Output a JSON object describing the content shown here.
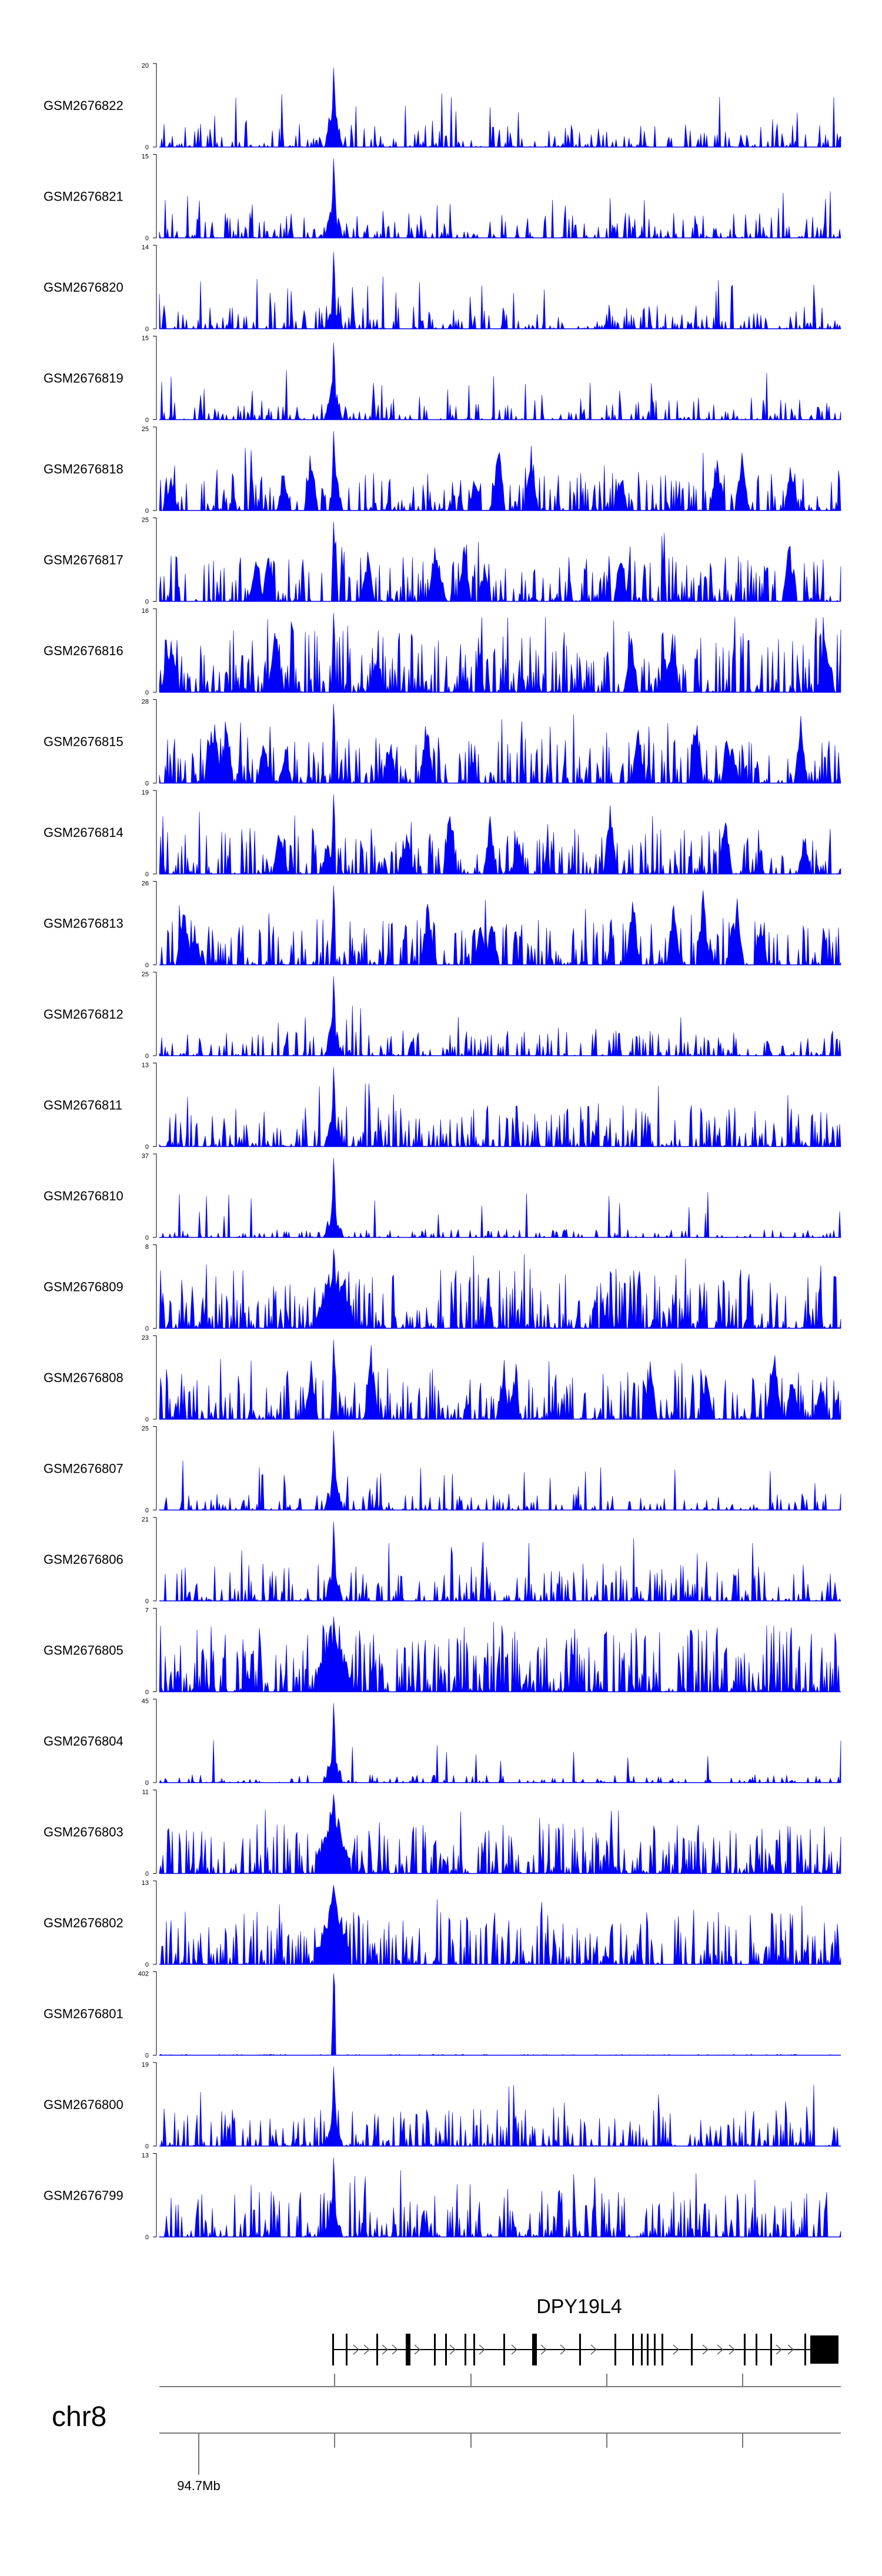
{
  "chart_data": {
    "type": "area",
    "fill_color": "#0000ff",
    "axis_color": "#000000",
    "x_range": [
      "region start",
      "region end"
    ],
    "tracks": [
      {
        "name": "GSM2676822",
        "ymax": "20",
        "ymin": "0",
        "profile": "peak",
        "peak_height": 0.95,
        "noise": 0.28,
        "seed": 11
      },
      {
        "name": "GSM2676821",
        "ymax": "15",
        "ymin": "0",
        "profile": "peak",
        "peak_height": 0.95,
        "noise": 0.3,
        "seed": 12
      },
      {
        "name": "GSM2676820",
        "ymax": "14",
        "ymin": "0",
        "profile": "peak",
        "peak_height": 0.92,
        "noise": 0.28,
        "seed": 13
      },
      {
        "name": "GSM2676819",
        "ymax": "15",
        "ymin": "0",
        "profile": "peak",
        "peak_height": 0.92,
        "noise": 0.25,
        "seed": 14
      },
      {
        "name": "GSM2676818",
        "ymax": "25",
        "ymin": "0",
        "profile": "broad",
        "peak_height": 0.95,
        "noise": 0.45,
        "seed": 15
      },
      {
        "name": "GSM2676817",
        "ymax": "25",
        "ymin": "0",
        "profile": "broad",
        "peak_height": 0.95,
        "noise": 0.55,
        "seed": 16
      },
      {
        "name": "GSM2676816",
        "ymax": "16",
        "ymin": "0",
        "profile": "broad",
        "peak_height": 0.95,
        "noise": 0.75,
        "seed": 17
      },
      {
        "name": "GSM2676815",
        "ymax": "28",
        "ymin": "0",
        "profile": "broad",
        "peak_height": 0.95,
        "noise": 0.55,
        "seed": 18
      },
      {
        "name": "GSM2676814",
        "ymax": "19",
        "ymin": "0",
        "profile": "broad",
        "peak_height": 0.95,
        "noise": 0.55,
        "seed": 19
      },
      {
        "name": "GSM2676813",
        "ymax": "26",
        "ymin": "0",
        "profile": "broad",
        "peak_height": 0.95,
        "noise": 0.55,
        "seed": 20
      },
      {
        "name": "GSM2676812",
        "ymax": "25",
        "ymin": "0",
        "profile": "peak",
        "peak_height": 0.95,
        "noise": 0.3,
        "seed": 21
      },
      {
        "name": "GSM2676811",
        "ymax": "13",
        "ymin": "0",
        "profile": "peak",
        "peak_height": 0.95,
        "noise": 0.5,
        "seed": 22
      },
      {
        "name": "GSM2676810",
        "ymax": "37",
        "ymin": "0",
        "profile": "peak",
        "peak_height": 0.95,
        "noise": 0.1,
        "seed": 23
      },
      {
        "name": "GSM2676809",
        "ymax": "8",
        "ymin": "0",
        "profile": "dense",
        "peak_height": 0.95,
        "noise": 0.7,
        "seed": 24
      },
      {
        "name": "GSM2676808",
        "ymax": "23",
        "ymin": "0",
        "profile": "broad",
        "peak_height": 0.95,
        "noise": 0.6,
        "seed": 25
      },
      {
        "name": "GSM2676807",
        "ymax": "25",
        "ymin": "0",
        "profile": "peak",
        "peak_height": 0.95,
        "noise": 0.2,
        "seed": 26
      },
      {
        "name": "GSM2676806",
        "ymax": "21",
        "ymin": "0",
        "profile": "peak",
        "peak_height": 0.95,
        "noise": 0.45,
        "seed": 27
      },
      {
        "name": "GSM2676805",
        "ymax": "7",
        "ymin": "0",
        "profile": "dense",
        "peak_height": 0.9,
        "noise": 0.8,
        "seed": 28
      },
      {
        "name": "GSM2676804",
        "ymax": "45",
        "ymin": "0",
        "profile": "peak",
        "peak_height": 0.95,
        "noise": 0.1,
        "seed": 29
      },
      {
        "name": "GSM2676803",
        "ymax": "11",
        "ymin": "0",
        "profile": "dense",
        "peak_height": 0.95,
        "noise": 0.6,
        "seed": 30
      },
      {
        "name": "GSM2676802",
        "ymax": "13",
        "ymin": "0",
        "profile": "dense",
        "peak_height": 0.95,
        "noise": 0.65,
        "seed": 31
      },
      {
        "name": "GSM2676801",
        "ymax": "402",
        "ymin": "0",
        "profile": "spike",
        "peak_height": 0.98,
        "noise": 0.02,
        "seed": 32
      },
      {
        "name": "GSM2676800",
        "ymax": "19",
        "ymin": "0",
        "profile": "peak",
        "peak_height": 0.95,
        "noise": 0.45,
        "seed": 33
      },
      {
        "name": "GSM2676799",
        "ymax": "13",
        "ymin": "0",
        "profile": "peak",
        "peak_height": 0.95,
        "noise": 0.55,
        "seed": 34
      }
    ],
    "gene": {
      "name": "DPY19L4",
      "strand": "+",
      "exon_count": 22
    },
    "chromosome": {
      "name": "chr8",
      "tick_labels": [
        "94.7Mb"
      ]
    }
  }
}
